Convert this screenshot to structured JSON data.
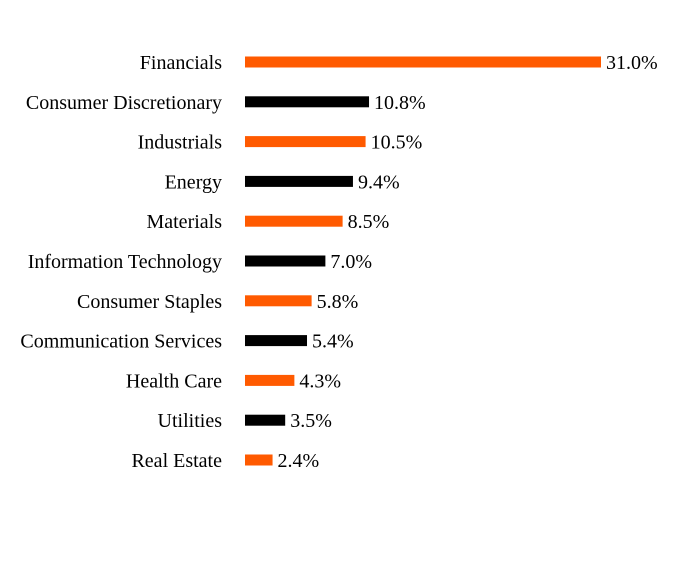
{
  "chart_data": {
    "type": "bar",
    "orientation": "horizontal",
    "categories": [
      "Financials",
      "Consumer Discretionary",
      "Industrials",
      "Energy",
      "Materials",
      "Information Technology",
      "Consumer Staples",
      "Communication Services",
      "Health Care",
      "Utilities",
      "Real Estate"
    ],
    "values": [
      31.0,
      10.8,
      10.5,
      9.4,
      8.5,
      7.0,
      5.8,
      5.4,
      4.3,
      3.5,
      2.4
    ],
    "value_labels": [
      "31.0%",
      "10.8%",
      "10.5%",
      "9.4%",
      "8.5%",
      "7.0%",
      "5.8%",
      "5.4%",
      "4.3%",
      "3.5%",
      "2.4%"
    ],
    "bar_colors": [
      "#FF5A00",
      "#000000"
    ],
    "title": "",
    "xlabel": "",
    "ylabel": "",
    "xlim": [
      0,
      31.0
    ],
    "grid": false,
    "legend": "none"
  }
}
